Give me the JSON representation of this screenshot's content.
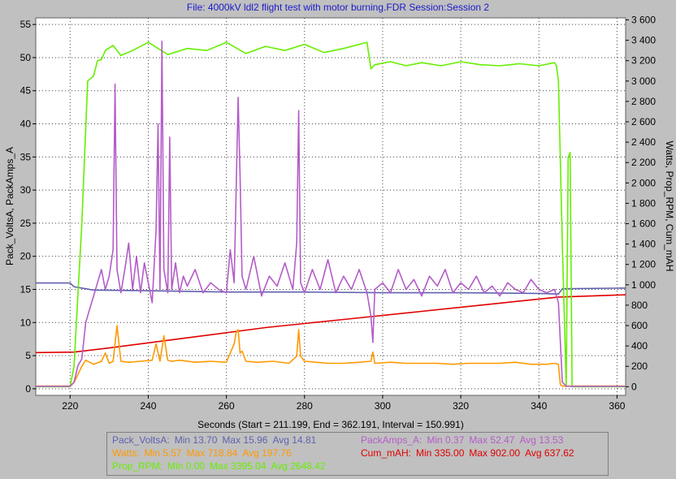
{
  "title": "File: 4000kV ldl2 flight test with motor burning.FDR   Session:Session 2",
  "chart_data": {
    "type": "line",
    "title": "File: 4000kV ldl2 flight test with motor burning.FDR   Session:Session 2",
    "xlabel": "Seconds (Start = 211.199,  End = 362.191,  Interval =  150.991)",
    "ylabel_left": "Pack_VoltsA, PackAmps_A",
    "ylabel_right": "Watts, Prop_RPM, Cum_mAH",
    "xlim": [
      211.2,
      362.2
    ],
    "ylim_left": [
      -1,
      56
    ],
    "ylim_right": [
      -85,
      3620
    ],
    "x_ticks": [
      "220",
      "240",
      "260",
      "280",
      "300",
      "320",
      "340",
      "360"
    ],
    "y_left_ticks": [
      "0",
      "5",
      "10",
      "15",
      "20",
      "25",
      "30",
      "35",
      "40",
      "45",
      "50",
      "55"
    ],
    "y_right_ticks": [
      "0",
      "200",
      "400",
      "600",
      "800",
      "1 000",
      "1 200",
      "1 400",
      "1 600",
      "1 800",
      "2 000",
      "2 200",
      "2 400",
      "2 600",
      "2 800",
      "3 000",
      "3 200",
      "3 400",
      "3 600"
    ],
    "grid": true,
    "series": [
      {
        "name": "Pack_VoltsA",
        "axis": "left",
        "color": "#6060b0",
        "x": [
          211.2,
          220.0,
          221.0,
          226.0,
          240.0,
          260.0,
          280.0,
          300.0,
          320.0,
          340.0,
          345.0,
          346.0,
          362.2
        ],
        "values": [
          15.96,
          15.96,
          15.4,
          14.9,
          14.8,
          14.6,
          14.6,
          14.5,
          14.5,
          14.4,
          14.3,
          15.1,
          15.2
        ]
      },
      {
        "name": "Cum_mAH",
        "axis": "right",
        "color": "#e00000",
        "x": [
          211.2,
          221.0,
          230.0,
          250.0,
          270.0,
          290.0,
          310.0,
          330.0,
          345.0,
          362.2
        ],
        "values": [
          335,
          340,
          380,
          480,
          580,
          660,
          740,
          820,
          880,
          902
        ]
      },
      {
        "name": "Prop_RPM",
        "axis": "right",
        "color": "#66ee00",
        "x": [
          211.2,
          220.0,
          221.0,
          223.0,
          224.5,
          226.0,
          227.0,
          228.0,
          229.0,
          231.0,
          233.0,
          236.0,
          240.0,
          245.0,
          250.0,
          255.0,
          260.0,
          265.0,
          270.0,
          275.0,
          280.0,
          285.0,
          290.0,
          296.0,
          297.0,
          298.0,
          302.0,
          306.0,
          310.0,
          315.0,
          320.0,
          325.0,
          330.0,
          335.0,
          340.0,
          344.0,
          344.5,
          345.0,
          346.0,
          347.0,
          347.5,
          348.0,
          348.5,
          349.0,
          350.0,
          362.2
        ],
        "values": [
          0,
          0,
          200,
          1600,
          3000,
          3050,
          3200,
          3210,
          3300,
          3350,
          3250,
          3300,
          3380,
          3260,
          3320,
          3300,
          3380,
          3270,
          3340,
          3300,
          3360,
          3280,
          3320,
          3380,
          3120,
          3160,
          3190,
          3150,
          3180,
          3150,
          3190,
          3160,
          3150,
          3170,
          3150,
          3180,
          3150,
          3000,
          1400,
          0,
          2250,
          2300,
          0,
          0,
          0,
          0
        ]
      },
      {
        "name": "Watts",
        "axis": "right",
        "color": "#ff9900",
        "x": [
          211.2,
          220.0,
          221.0,
          223.0,
          224.0,
          226.0,
          228.0,
          229.0,
          230.0,
          231.0,
          232.0,
          233.0,
          235.0,
          238.0,
          241.0,
          242.0,
          243.0,
          244.0,
          245.0,
          246.0,
          248.0,
          252.0,
          256.0,
          260.0,
          262.0,
          262.5,
          263.0,
          263.5,
          264.0,
          265.0,
          268.0,
          272.0,
          276.0,
          278.0,
          278.5,
          279.0,
          280.0,
          283.0,
          286.0,
          290.0,
          294.0,
          297.0,
          297.5,
          298.0,
          302.0,
          306.0,
          310.0,
          314.0,
          318.0,
          322.0,
          326.0,
          330.0,
          334.0,
          338.0,
          342.0,
          344.0,
          345.0,
          345.5,
          346.0,
          362.2
        ],
        "values": [
          5.57,
          5.57,
          40,
          200,
          260,
          220,
          250,
          330,
          230,
          250,
          600,
          250,
          240,
          250,
          260,
          420,
          250,
          500,
          260,
          250,
          260,
          240,
          250,
          240,
          420,
          530,
          560,
          330,
          350,
          250,
          240,
          250,
          230,
          300,
          560,
          300,
          250,
          240,
          230,
          230,
          240,
          250,
          340,
          230,
          240,
          230,
          230,
          230,
          220,
          230,
          230,
          230,
          240,
          220,
          220,
          230,
          220,
          20,
          5.57,
          5.57
        ]
      },
      {
        "name": "PackAmps_A",
        "axis": "left",
        "color": "#b45cc8",
        "x": [
          211.2,
          220.0,
          221.0,
          222.0,
          223.0,
          224.0,
          225.0,
          226.0,
          227.0,
          228.0,
          229.0,
          230.0,
          231.0,
          231.5,
          232.0,
          233.0,
          234.0,
          235.0,
          236.0,
          237.0,
          238.0,
          239.0,
          240.0,
          241.0,
          242.0,
          242.5,
          243.0,
          243.5,
          244.0,
          245.0,
          245.5,
          246.0,
          247.0,
          248.0,
          249.0,
          250.0,
          252.0,
          254.0,
          256.0,
          258.0,
          260.0,
          261.0,
          262.0,
          263.0,
          263.5,
          264.0,
          265.0,
          267.0,
          269.0,
          271.0,
          273.0,
          275.0,
          277.0,
          278.0,
          278.5,
          279.0,
          280.0,
          282.0,
          284.0,
          286.0,
          288.0,
          290.0,
          292.0,
          294.0,
          296.0,
          297.0,
          297.5,
          298.0,
          300.0,
          302.0,
          304.0,
          306.0,
          308.0,
          310.0,
          312.0,
          314.0,
          316.0,
          318.0,
          320.0,
          322.0,
          324.0,
          326.0,
          328.0,
          330.0,
          332.0,
          334.0,
          336.0,
          338.0,
          340.0,
          342.0,
          344.0,
          345.0,
          346.0,
          347.0,
          362.2
        ],
        "values": [
          0.37,
          0.37,
          1.0,
          3.5,
          4.5,
          10.0,
          12.0,
          14.0,
          16.0,
          18.0,
          15.0,
          17.0,
          21.0,
          46.0,
          18.0,
          14.5,
          18.0,
          22.0,
          15.0,
          20.0,
          14.5,
          19.0,
          16.0,
          13.0,
          24.0,
          40.0,
          15.0,
          52.47,
          18.0,
          14.5,
          38.0,
          15.0,
          19.0,
          14.5,
          17.0,
          15.5,
          18.0,
          14.5,
          16.0,
          15.0,
          14.5,
          21.0,
          16.0,
          44.0,
          32.0,
          17.0,
          15.0,
          20.0,
          14.0,
          17.0,
          15.5,
          19.0,
          15.0,
          22.0,
          42.0,
          16.0,
          14.5,
          18.0,
          15.0,
          19.5,
          14.5,
          17.0,
          15.0,
          18.0,
          14.5,
          11.0,
          7.0,
          15.0,
          16.0,
          14.5,
          18.0,
          15.0,
          16.5,
          14.0,
          17.0,
          15.5,
          18.0,
          14.5,
          16.0,
          15.0,
          17.0,
          14.5,
          15.5,
          14.0,
          16.0,
          15.0,
          14.5,
          16.5,
          15.0,
          14.5,
          15.0,
          13.0,
          1.0,
          0.37,
          0.37
        ]
      }
    ]
  },
  "legend": {
    "row1": [
      {
        "label": "Pack_VoltsA:",
        "min": "Min 13.70",
        "max": "Max 15.96",
        "avg": "Avg 14.81",
        "color": "#6060b0"
      },
      {
        "label": "PackAmps_A:",
        "min": "Min 0.37",
        "max": "Max 52.47",
        "avg": "Avg 13.53",
        "color": "#b45cc8"
      }
    ],
    "row2": [
      {
        "label": "Watts:",
        "min": "Min 5.57",
        "max": "Max 718.84",
        "avg": "Avg 197.76",
        "color": "#ff9900"
      },
      {
        "label": "Cum_mAH:",
        "min": "Min 335.00",
        "max": "Max 902.00",
        "avg": "Avg 637.62",
        "color": "#e00000"
      }
    ],
    "row3": [
      {
        "label": "Prop_RPM:",
        "min": "Min 0.00",
        "max": "Max 3395.04",
        "avg": "Avg 2648.42",
        "color": "#66ee00"
      }
    ]
  }
}
